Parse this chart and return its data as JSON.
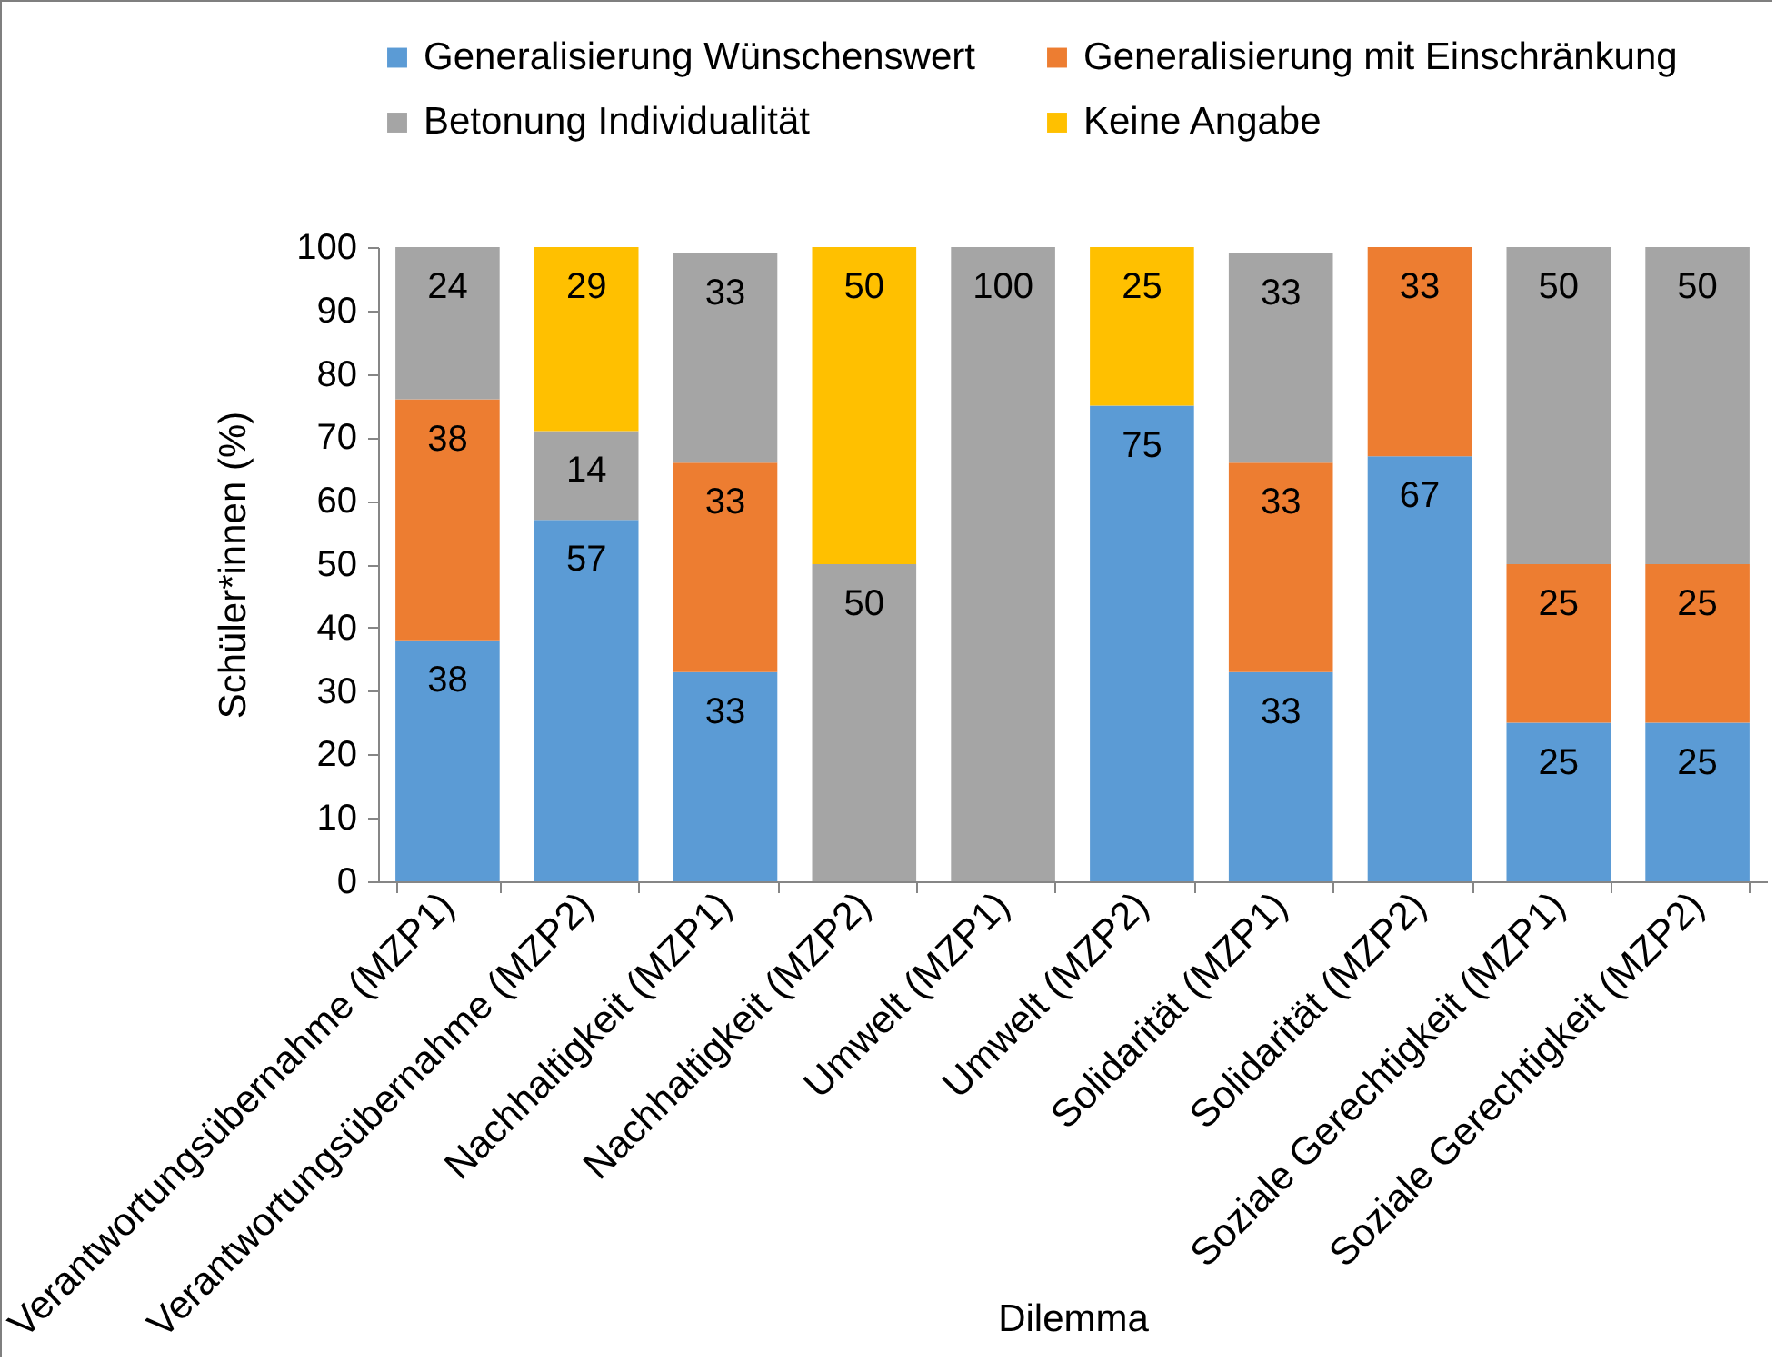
{
  "chart_data": {
    "type": "bar",
    "stacked": true,
    "xlabel": "Dilemma",
    "ylabel": "Schüler*innen (%)",
    "categories": [
      "Verantwortungsübernahme (MZP1)",
      "Verantwortungsübernahme (MZP2)",
      "Nachhaltigkeit (MZP1)",
      "Nachhaltigkeit (MZP2)",
      "Umwelt (MZP1)",
      "Umwelt (MZP2)",
      "Solidarität (MZP1)",
      "Solidarität (MZP2)",
      "Soziale Gerechtigkeit (MZP1)",
      "Soziale Gerechtigkeit (MZP2)"
    ],
    "series": [
      {
        "name": "Generalisierung Wünschenswert",
        "color": "#5b9bd5",
        "values": [
          38,
          57,
          33,
          null,
          null,
          75,
          33,
          67,
          25,
          25
        ]
      },
      {
        "name": "Generalisierung mit Einschränkung",
        "color": "#ed7d31",
        "values": [
          38,
          null,
          33,
          null,
          null,
          null,
          33,
          33,
          25,
          25
        ]
      },
      {
        "name": "Betonung Individualität",
        "color": "#a5a5a5",
        "values": [
          24,
          14,
          33,
          50,
          100,
          null,
          33,
          null,
          50,
          50
        ]
      },
      {
        "name": "Keine Angabe",
        "color": "#ffc000",
        "values": [
          null,
          29,
          null,
          50,
          null,
          25,
          null,
          null,
          null,
          null
        ]
      }
    ],
    "ylim": [
      0,
      100
    ],
    "yticks": [
      0,
      10,
      20,
      30,
      40,
      50,
      60,
      70,
      80,
      90,
      100
    ],
    "data_labels": true,
    "legend": "top"
  }
}
